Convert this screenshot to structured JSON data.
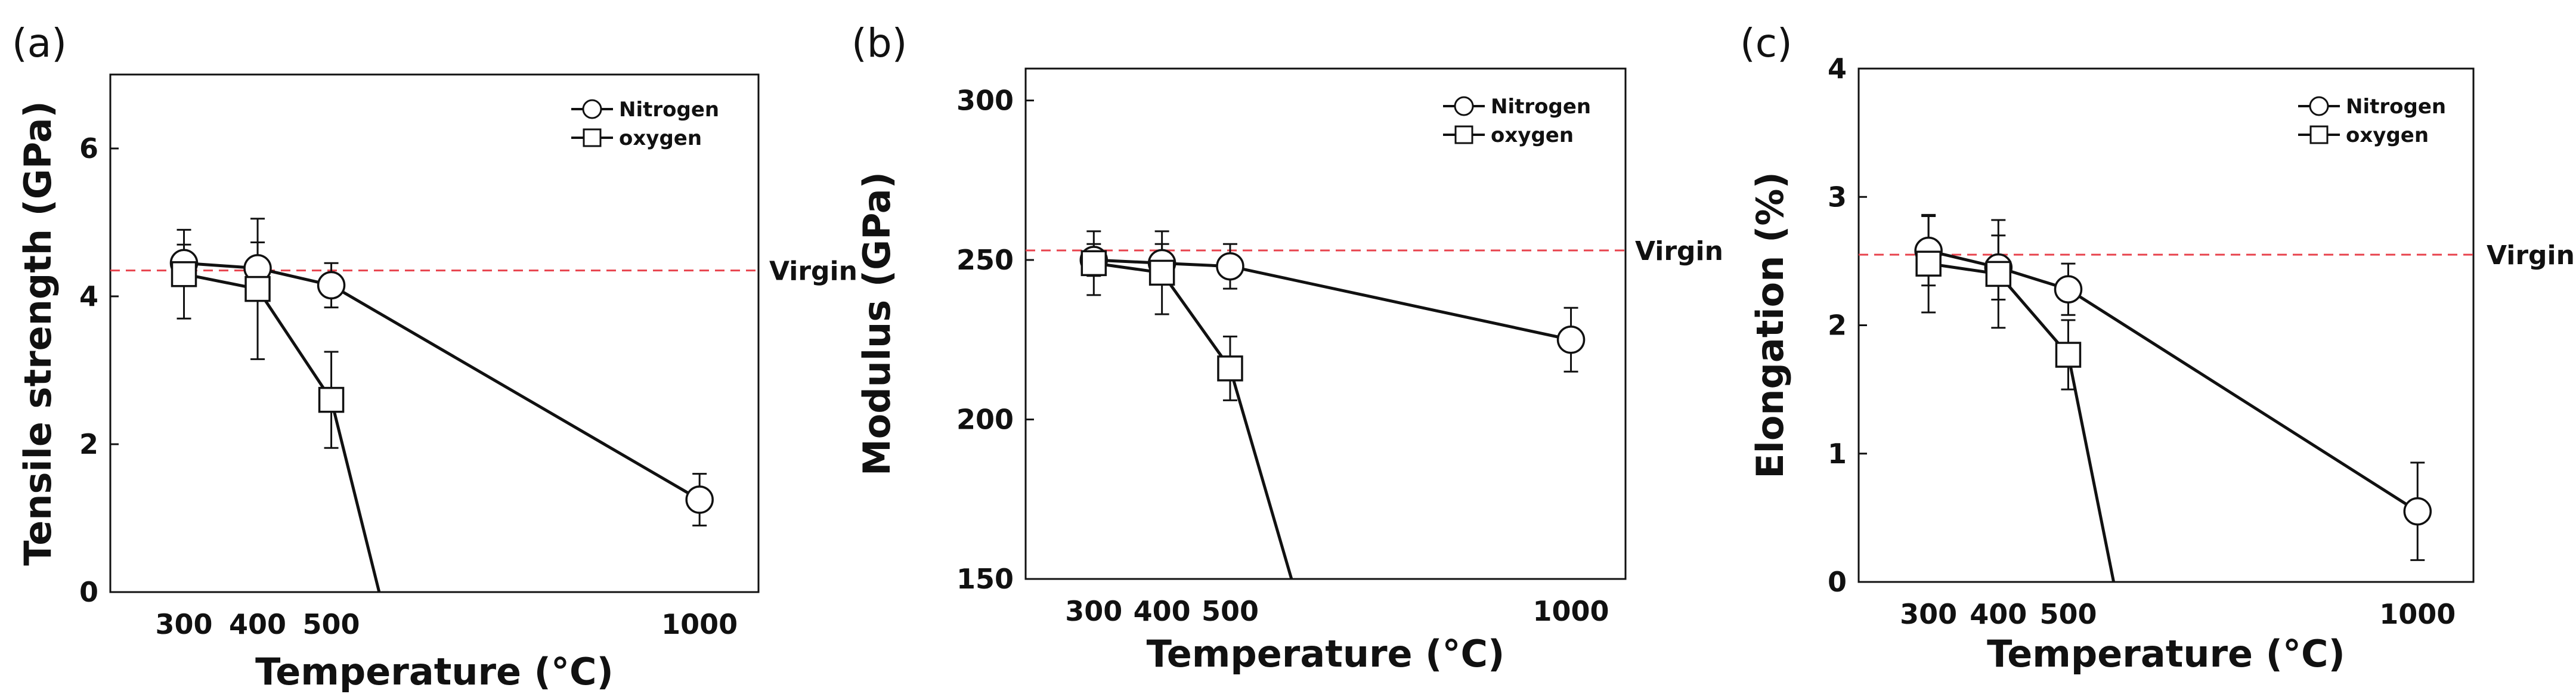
{
  "colors": {
    "axis": "#111111",
    "series": "#111111",
    "marker_fill": "#ffffff",
    "reference_line": "#e8434d"
  },
  "chart_data": [
    {
      "type": "line",
      "panel_label": "(a)",
      "xlabel": "Temperature (°C)",
      "ylabel": "Tensile strength (GPa)",
      "xlim": [
        200,
        1080
      ],
      "ylim": [
        0,
        7
      ],
      "yticks": [
        0,
        2,
        4,
        6
      ],
      "x_tick_labels": [
        "300",
        "400",
        "500",
        "1000"
      ],
      "reference_line": {
        "y": 4.35,
        "label": "Virgin"
      },
      "legend": {
        "position": "top-right",
        "entries": [
          "Nitrogen",
          "oxygen"
        ]
      },
      "series": [
        {
          "name": "Nitrogen",
          "marker": "circle",
          "x": [
            300,
            400,
            500,
            1000
          ],
          "y": [
            4.45,
            4.38,
            4.15,
            1.25
          ],
          "err": [
            0.25,
            0.35,
            0.3,
            0.35
          ]
        },
        {
          "name": "oxygen",
          "marker": "square",
          "x": [
            300,
            400,
            500
          ],
          "y": [
            4.3,
            4.1,
            2.6
          ],
          "err": [
            0.6,
            0.95,
            0.65
          ],
          "continues_to": {
            "x": 565,
            "y": 0
          }
        }
      ]
    },
    {
      "type": "line",
      "panel_label": "(b)",
      "xlabel": "Temperature (°C)",
      "ylabel": "Modulus (GPa)",
      "xlim": [
        200,
        1080
      ],
      "ylim": [
        150,
        310
      ],
      "yticks": [
        150,
        200,
        250,
        300
      ],
      "x_tick_labels": [
        "300",
        "400",
        "500",
        "1000"
      ],
      "reference_line": {
        "y": 253,
        "label": "Virgin"
      },
      "legend": {
        "position": "top-right",
        "entries": [
          "Nitrogen",
          "oxygen"
        ]
      },
      "series": [
        {
          "name": "Nitrogen",
          "marker": "circle",
          "x": [
            300,
            400,
            500,
            1000
          ],
          "y": [
            250,
            249,
            248,
            225
          ],
          "err": [
            5,
            6,
            7,
            10
          ]
        },
        {
          "name": "oxygen",
          "marker": "square",
          "x": [
            300,
            400,
            500
          ],
          "y": [
            249,
            246,
            216
          ],
          "err": [
            10,
            13,
            10
          ],
          "continues_to": {
            "x": 590,
            "y": 150
          }
        }
      ]
    },
    {
      "type": "line",
      "panel_label": "(c)",
      "xlabel": "Temperature (°C)",
      "ylabel": "Elongation (%)",
      "xlim": [
        200,
        1080
      ],
      "ylim": [
        0,
        4
      ],
      "yticks": [
        0,
        1,
        2,
        3,
        4
      ],
      "x_tick_labels": [
        "300",
        "400",
        "500",
        "1000"
      ],
      "reference_line": {
        "y": 2.55,
        "label": "Virgin"
      },
      "legend": {
        "position": "top-right",
        "entries": [
          "Nitrogen",
          "oxygen"
        ]
      },
      "series": [
        {
          "name": "Nitrogen",
          "marker": "circle",
          "x": [
            300,
            400,
            500,
            1000
          ],
          "y": [
            2.58,
            2.45,
            2.28,
            0.55
          ],
          "err": [
            0.27,
            0.25,
            0.2,
            0.38
          ]
        },
        {
          "name": "oxygen",
          "marker": "square",
          "x": [
            300,
            400,
            500
          ],
          "y": [
            2.48,
            2.4,
            1.77
          ],
          "err": [
            0.38,
            0.42,
            0.27
          ],
          "continues_to": {
            "x": 565,
            "y": 0
          }
        }
      ]
    }
  ]
}
